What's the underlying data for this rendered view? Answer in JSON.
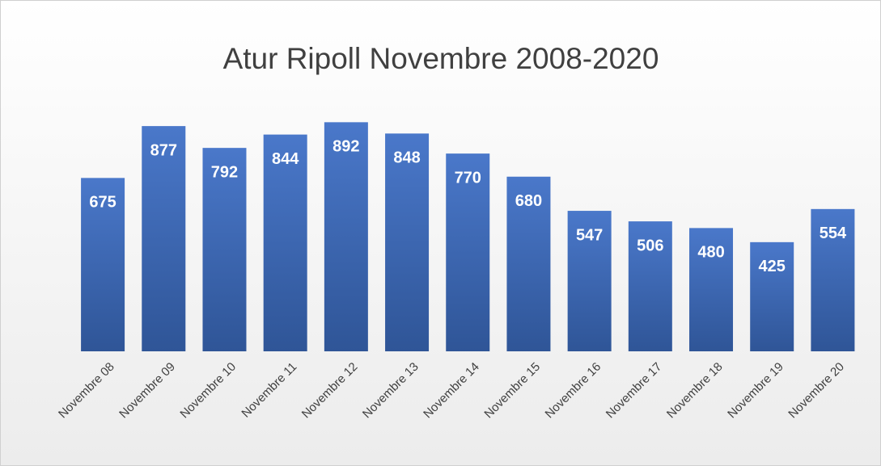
{
  "chart_data": {
    "type": "bar",
    "title": "Atur Ripoll Novembre 2008-2020",
    "categories": [
      "Novembre 08",
      "Novembre 09",
      "Novembre 10",
      "Novembre 11",
      "Novembre 12",
      "Novembre 13",
      "Novembre 14",
      "Novembre 15",
      "Novembre 16",
      "Novembre 17",
      "Novembre 18",
      "Novembre 19",
      "Novembre 20"
    ],
    "values": [
      675,
      877,
      792,
      844,
      892,
      848,
      770,
      680,
      547,
      506,
      480,
      425,
      554
    ],
    "color": "#4472c4",
    "ylim": [
      0,
      1000
    ]
  }
}
